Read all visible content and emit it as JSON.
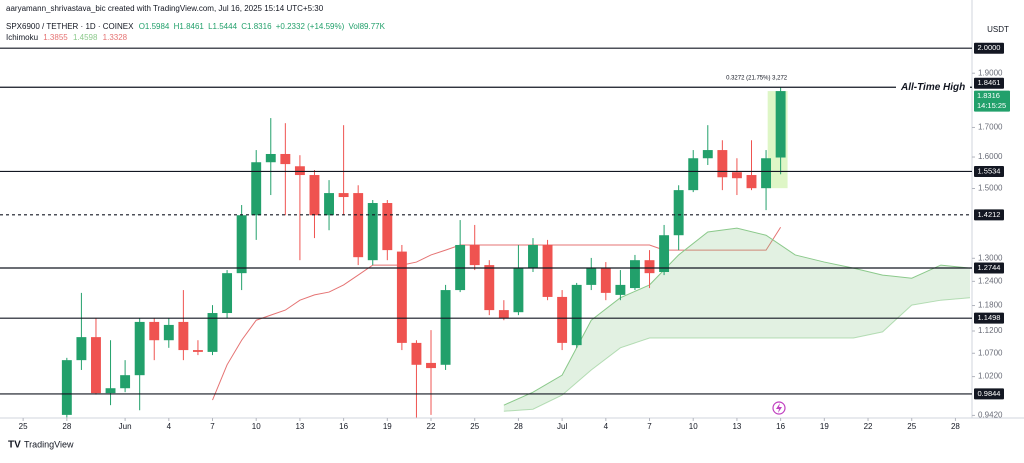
{
  "chart_data": {
    "type": "candlestick",
    "attribution": "aaryamann_shrivastava_bic created with TradingView.com, Jul 16, 2025 15:14 UTC+5:30",
    "symbol": "SPX6900 / TETHER · 1D · COINEX",
    "quote": [
      "O1.5984",
      "H1.8461",
      "L1.5444",
      "C1.8316",
      "+0.2332 (+14.59%)",
      "Vol89.77K"
    ],
    "indicator": "Ichimoku",
    "indicator_values": [
      "1.3855",
      "1.4598",
      "1.3328"
    ],
    "unit": "USDT",
    "brand": "TradingView",
    "ath_label": "All-Time High",
    "measure_label": "0.3272 (21.75%) 3,272",
    "countdown": "14:15:25",
    "up_color": "#22a06b",
    "down_color": "#ef5350",
    "log_scale": true,
    "grid": false,
    "xlim": [
      "2025-05-23",
      "2025-07-29"
    ],
    "ylim": [
      0.937,
      2.076
    ],
    "x": [
      "2025-05-28",
      "2025-05-29",
      "2025-05-30",
      "2025-05-31",
      "2025-06-01",
      "2025-06-02",
      "2025-06-03",
      "2025-06-04",
      "2025-06-05",
      "2025-06-06",
      "2025-06-07",
      "2025-06-08",
      "2025-06-09",
      "2025-06-10",
      "2025-06-11",
      "2025-06-12",
      "2025-06-13",
      "2025-06-14",
      "2025-06-15",
      "2025-06-16",
      "2025-06-17",
      "2025-06-18",
      "2025-06-19",
      "2025-06-20",
      "2025-06-21",
      "2025-06-22",
      "2025-06-23",
      "2025-06-24",
      "2025-06-25",
      "2025-06-26",
      "2025-06-27",
      "2025-06-28",
      "2025-06-29",
      "2025-06-30",
      "2025-07-01",
      "2025-07-02",
      "2025-07-03",
      "2025-07-04",
      "2025-07-05",
      "2025-07-06",
      "2025-07-07",
      "2025-07-08",
      "2025-07-09",
      "2025-07-10",
      "2025-07-11",
      "2025-07-12",
      "2025-07-13",
      "2025-07-14",
      "2025-07-15",
      "2025-07-16"
    ],
    "open": [
      0.943,
      1.055,
      1.106,
      0.986,
      0.996,
      1.023,
      1.141,
      1.099,
      1.141,
      1.077,
      1.073,
      1.162,
      1.261,
      1.42,
      1.583,
      1.61,
      1.57,
      1.542,
      1.42,
      1.486,
      1.486,
      1.295,
      1.456,
      1.318,
      1.093,
      1.049,
      1.045,
      1.218,
      1.336,
      1.282,
      1.169,
      1.164,
      1.274,
      1.336,
      1.201,
      1.088,
      1.231,
      1.274,
      1.206,
      1.223,
      1.295,
      1.264,
      1.363,
      1.495,
      1.596,
      1.623,
      1.551,
      1.542,
      1.501,
      1.5984
    ],
    "high": [
      1.06,
      1.211,
      1.15,
      1.099,
      1.055,
      1.15,
      1.15,
      1.15,
      1.218,
      1.099,
      1.181,
      1.269,
      1.45,
      1.623,
      1.733,
      1.715,
      1.606,
      1.558,
      1.526,
      1.708,
      1.51,
      1.465,
      1.465,
      1.336,
      1.099,
      1.122,
      1.231,
      1.406,
      1.392,
      1.295,
      1.193,
      1.336,
      1.355,
      1.35,
      1.218,
      1.236,
      1.301,
      1.29,
      1.269,
      1.309,
      1.322,
      1.392,
      1.51,
      1.623,
      1.708,
      1.656,
      1.596,
      1.656,
      1.623,
      1.8461
    ],
    "low": [
      0.93,
      1.034,
      0.983,
      0.962,
      0.988,
      0.952,
      1.055,
      1.082,
      1.055,
      1.066,
      1.066,
      1.15,
      1.218,
      1.35,
      1.48,
      1.42,
      1.295,
      1.355,
      1.377,
      1.42,
      1.282,
      1.282,
      1.295,
      1.077,
      0.937,
      0.943,
      1.034,
      1.213,
      1.269,
      1.157,
      1.145,
      1.157,
      1.264,
      1.193,
      1.077,
      1.082,
      1.218,
      1.193,
      1.193,
      1.218,
      1.223,
      1.256,
      1.322,
      1.489,
      1.574,
      1.495,
      1.48,
      1.495,
      1.435,
      1.5444
    ],
    "close": [
      1.055,
      1.106,
      0.986,
      0.996,
      1.023,
      1.141,
      1.099,
      1.134,
      1.077,
      1.073,
      1.162,
      1.261,
      1.42,
      1.583,
      1.61,
      1.577,
      1.542,
      1.42,
      1.486,
      1.474,
      1.303,
      1.456,
      1.322,
      1.093,
      1.045,
      1.038,
      1.218,
      1.336,
      1.282,
      1.169,
      1.15,
      1.274,
      1.336,
      1.201,
      1.093,
      1.231,
      1.274,
      1.211,
      1.231,
      1.295,
      1.261,
      1.363,
      1.495,
      1.596,
      1.623,
      1.535,
      1.532,
      1.501,
      1.596,
      1.8316
    ],
    "overlays": [
      {
        "type": "line",
        "color": "#e57373",
        "x": [
          "2025-06-07",
          "2025-06-08",
          "2025-06-09",
          "2025-06-10",
          "2025-06-11",
          "2025-06-12",
          "2025-06-13",
          "2025-06-14",
          "2025-06-15",
          "2025-06-16",
          "2025-06-17",
          "2025-06-18",
          "2025-06-19",
          "2025-06-20",
          "2025-06-21",
          "2025-06-22",
          "2025-06-23",
          "2025-06-24",
          "2025-06-25",
          "2025-06-26",
          "2025-06-27",
          "2025-06-28",
          "2025-06-29",
          "2025-06-30",
          "2025-07-01",
          "2025-07-02",
          "2025-07-03",
          "2025-07-04",
          "2025-07-05",
          "2025-07-06",
          "2025-07-07",
          "2025-07-08",
          "2025-07-09",
          "2025-07-10",
          "2025-07-11",
          "2025-07-12",
          "2025-07-13",
          "2025-07-14",
          "2025-07-15",
          "2025-07-16"
        ],
        "values": [
          0.972,
          1.045,
          1.099,
          1.145,
          1.157,
          1.169,
          1.193,
          1.206,
          1.213,
          1.231,
          1.256,
          1.282,
          1.282,
          1.282,
          1.29,
          1.309,
          1.322,
          1.336,
          1.336,
          1.336,
          1.336,
          1.336,
          1.336,
          1.336,
          1.336,
          1.336,
          1.336,
          1.336,
          1.336,
          1.336,
          1.336,
          1.322,
          1.322,
          1.322,
          1.322,
          1.322,
          1.322,
          1.322,
          1.322,
          1.3855
        ]
      },
      {
        "type": "area",
        "color": "#8bc98b",
        "x": [
          "2025-06-27",
          "2025-06-29",
          "2025-07-01",
          "2025-07-03",
          "2025-07-05",
          "2025-07-07",
          "2025-07-09",
          "2025-07-11",
          "2025-07-13",
          "2025-07-15",
          "2025-07-17",
          "2025-07-19",
          "2025-07-21",
          "2025-07-23",
          "2025-07-25",
          "2025-07-27",
          "2025-07-29"
        ],
        "upper": [
          0.962,
          0.988,
          1.023,
          1.145,
          1.199,
          1.231,
          1.309,
          1.372,
          1.383,
          1.363,
          1.309,
          1.29,
          1.274,
          1.256,
          1.248,
          1.282,
          1.274
        ],
        "lower": [
          0.95,
          0.954,
          0.982,
          1.034,
          1.082,
          1.104,
          1.104,
          1.104,
          1.104,
          1.104,
          1.104,
          1.104,
          1.104,
          1.118,
          1.181,
          1.193,
          1.199
        ]
      }
    ],
    "levels": [
      {
        "value": 2,
        "label": "2.0000",
        "style": "solid"
      },
      {
        "value": 1.8461,
        "label": "1.8461",
        "style": "solid"
      },
      {
        "value": 1.5534,
        "label": "1.5534",
        "style": "solid"
      },
      {
        "value": 1.4212,
        "label": "1.4212",
        "style": "dashed"
      },
      {
        "value": 1.2744,
        "label": "1.2744",
        "style": "solid"
      },
      {
        "value": 1.1498,
        "label": "1.1498",
        "style": "solid"
      },
      {
        "value": 0.9844,
        "label": "0.9844",
        "style": "solid"
      }
    ],
    "yticks": [
      {
        "value": 1.9,
        "label": "1.9000"
      },
      {
        "value": 1.7,
        "label": "1.7000"
      },
      {
        "value": 1.6,
        "label": "1.6000"
      },
      {
        "value": 1.5,
        "label": "1.5000"
      },
      {
        "value": 1.3,
        "label": "1.3000"
      },
      {
        "value": 1.24,
        "label": "1.2400"
      },
      {
        "value": 1.18,
        "label": "1.1800"
      },
      {
        "value": 1.12,
        "label": "1.1200"
      },
      {
        "value": 1.07,
        "label": "1.0700"
      },
      {
        "value": 1.02,
        "label": "1.0200"
      },
      {
        "value": 0.942,
        "label": "0.9420"
      }
    ],
    "xticks": [
      {
        "value": "2025-05-25",
        "label": "25"
      },
      {
        "value": "2025-05-28",
        "label": "28"
      },
      {
        "value": "2025-06-01",
        "label": "Jun"
      },
      {
        "value": "2025-06-04",
        "label": "4"
      },
      {
        "value": "2025-06-07",
        "label": "7"
      },
      {
        "value": "2025-06-10",
        "label": "10"
      },
      {
        "value": "2025-06-13",
        "label": "13"
      },
      {
        "value": "2025-06-16",
        "label": "16"
      },
      {
        "value": "2025-06-19",
        "label": "19"
      },
      {
        "value": "2025-06-22",
        "label": "22"
      },
      {
        "value": "2025-06-25",
        "label": "25"
      },
      {
        "value": "2025-06-28",
        "label": "28"
      },
      {
        "value": "2025-07-01",
        "label": "Jul"
      },
      {
        "value": "2025-07-04",
        "label": "4"
      },
      {
        "value": "2025-07-07",
        "label": "7"
      },
      {
        "value": "2025-07-10",
        "label": "10"
      },
      {
        "value": "2025-07-13",
        "label": "13"
      },
      {
        "value": "2025-07-16",
        "label": "16"
      },
      {
        "value": "2025-07-19",
        "label": "19"
      },
      {
        "value": "2025-07-22",
        "label": "22"
      },
      {
        "value": "2025-07-25",
        "label": "25"
      },
      {
        "value": "2025-07-28",
        "label": "28"
      }
    ]
  }
}
